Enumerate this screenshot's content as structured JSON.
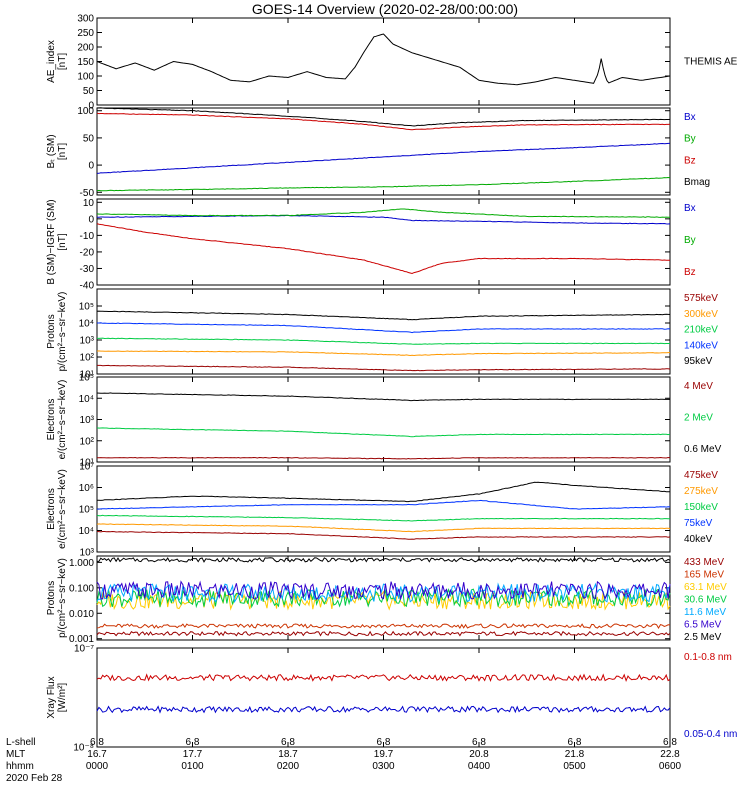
{
  "chart_data": {
    "title": "GOES-14 Overview (2020-02-28/00:00:00)",
    "type": "line",
    "x": {
      "ticks": [
        "0000",
        "0100",
        "0200",
        "0300",
        "0400",
        "0500",
        "0600"
      ],
      "range_hours": [
        0,
        6
      ],
      "rows": [
        {
          "name": "L-shell",
          "values": [
            "6.8",
            "6.8",
            "6.8",
            "6.8",
            "6.8",
            "6.8",
            "6.8"
          ]
        },
        {
          "name": "MLT",
          "values": [
            "16.7",
            "17.7",
            "18.7",
            "19.7",
            "20.8",
            "21.8",
            "22.8"
          ]
        },
        {
          "name": "hhmm",
          "values": [
            "0000",
            "0100",
            "0200",
            "0300",
            "0400",
            "0500",
            "0600"
          ]
        }
      ],
      "date": "2020 Feb 28"
    },
    "panels": [
      {
        "id": "ae",
        "ylabel": [
          "AE_index",
          "[nT]"
        ],
        "scale": "linear",
        "ylim": [
          0,
          300
        ],
        "yticks": [
          "0",
          "50",
          "100",
          "150",
          "200",
          "250",
          "300"
        ],
        "series": [
          {
            "name": "THEMIS AE",
            "color": "#000000",
            "x": [
              0,
              0.2,
              0.4,
              0.6,
              0.8,
              1.0,
              1.2,
              1.4,
              1.6,
              1.8,
              2.0,
              2.2,
              2.4,
              2.6,
              2.7,
              2.8,
              2.9,
              3.0,
              3.1,
              3.2,
              3.3,
              3.4,
              3.6,
              3.8,
              4.0,
              4.2,
              4.4,
              4.6,
              4.8,
              5.0,
              5.2,
              5.25,
              5.28,
              5.31,
              5.35,
              5.5,
              5.7,
              5.9,
              6.0
            ],
            "y": [
              150,
              125,
              145,
              120,
              150,
              140,
              115,
              85,
              80,
              100,
              95,
              115,
              95,
              90,
              130,
              185,
              235,
              245,
              210,
              195,
              180,
              170,
              150,
              130,
              85,
              75,
              70,
              80,
              95,
              85,
              75,
              110,
              160,
              110,
              75,
              95,
              85,
              95,
              100
            ]
          }
        ]
      },
      {
        "id": "bsm",
        "ylabel": [
          "Bₜ (SM)",
          "[nT]"
        ],
        "scale": "linear",
        "ylim": [
          -55,
          105
        ],
        "yticks": [
          "-50",
          "0",
          "50",
          "100"
        ],
        "series": [
          {
            "name": "Bx",
            "color": "#0000cc",
            "x": [
              0,
              1,
              2,
              3,
              4,
              5,
              6
            ],
            "y": [
              -15,
              -5,
              5,
              15,
              25,
              32,
              40
            ]
          },
          {
            "name": "By",
            "color": "#00aa00",
            "x": [
              0,
              1,
              2,
              3,
              4,
              5,
              6
            ],
            "y": [
              -47,
              -45,
              -42,
              -40,
              -36,
              -30,
              -23
            ]
          },
          {
            "name": "Bz",
            "color": "#cc0000",
            "x": [
              0,
              1,
              2,
              2.8,
              3.3,
              3.8,
              4.5,
              6
            ],
            "y": [
              95,
              92,
              85,
              75,
              65,
              70,
              74,
              75
            ]
          },
          {
            "name": "Bmag",
            "color": "#000000",
            "x": [
              0,
              1,
              2,
              2.8,
              3.3,
              3.8,
              4.5,
              6
            ],
            "y": [
              105,
              100,
              90,
              80,
              72,
              78,
              82,
              84
            ]
          }
        ]
      },
      {
        "id": "bigrf",
        "ylabel": [
          "B (SM)−IGRF (SM)",
          "[nT]"
        ],
        "scale": "linear",
        "ylim": [
          -40,
          12
        ],
        "yticks": [
          "-40",
          "-30",
          "-20",
          "-10",
          "0",
          "10"
        ],
        "series": [
          {
            "name": "Bx",
            "color": "#0000cc",
            "x": [
              0,
              1,
              2,
              3,
              3.3,
              4,
              5,
              6
            ],
            "y": [
              1,
              1.5,
              2,
              1,
              -1,
              -1.5,
              -2.5,
              -3
            ]
          },
          {
            "name": "By",
            "color": "#00aa00",
            "x": [
              0,
              1,
              2,
              2.8,
              3.2,
              3.6,
              4.5,
              6
            ],
            "y": [
              3,
              2,
              2,
              4,
              6,
              4,
              1.5,
              1
            ]
          },
          {
            "name": "Bz",
            "color": "#cc0000",
            "x": [
              0,
              0.5,
              1,
              2,
              2.8,
              3.3,
              3.6,
              4,
              5,
              6
            ],
            "y": [
              -3,
              -8,
              -12,
              -18,
              -25,
              -33,
              -27,
              -24,
              -24,
              -25
            ]
          }
        ],
        "legend": [
          "Bx",
          "By",
          "Bz"
        ]
      },
      {
        "id": "protons",
        "ylabel": [
          "Protons",
          "p/(cm²−s−sr−keV)"
        ],
        "scale": "log",
        "ylim": [
          1,
          6
        ],
        "yticks": [
          "10¹",
          "10²",
          "10³",
          "10⁴",
          "10⁵"
        ],
        "series": [
          {
            "name": "575keV",
            "color": "#990000",
            "x": [
              0,
              2,
              3.3,
              4,
              6
            ],
            "y": [
              1.5,
              1.4,
              1.2,
              1.25,
              1.3
            ]
          },
          {
            "name": "300keV",
            "color": "#ff9900",
            "x": [
              0,
              2,
              3.3,
              4,
              6
            ],
            "y": [
              2.35,
              2.3,
              2.1,
              2.2,
              2.25
            ]
          },
          {
            "name": "210keV",
            "color": "#00cc44",
            "x": [
              0,
              2,
              3.3,
              4,
              6
            ],
            "y": [
              3.1,
              3.0,
              2.75,
              2.8,
              2.8
            ]
          },
          {
            "name": "140keV",
            "color": "#0033ff",
            "x": [
              0,
              2,
              3.3,
              4,
              6
            ],
            "y": [
              4.0,
              3.85,
              3.45,
              3.65,
              3.65
            ]
          },
          {
            "name": "95keV",
            "color": "#000000",
            "x": [
              0,
              2,
              3.3,
              4,
              6
            ],
            "y": [
              4.7,
              4.5,
              4.2,
              4.4,
              4.5
            ]
          }
        ],
        "legend": [
          "575keV",
          "300keV",
          "210keV",
          "140keV",
          "95keV"
        ]
      },
      {
        "id": "electrons1",
        "ylabel": [
          "Electrons",
          "e/(cm²−s−sr−keV)"
        ],
        "scale": "log",
        "ylim": [
          1,
          5
        ],
        "yticks": [
          "10¹",
          "10²",
          "10³",
          "10⁴",
          "10⁵"
        ],
        "series": [
          {
            "name": "4 MeV",
            "color": "#990000",
            "x": [
              0,
              2,
              3.3,
              4,
              6
            ],
            "y": [
              1.2,
              1.2,
              1.15,
              1.2,
              1.2
            ]
          },
          {
            "name": "2 MeV",
            "color": "#00cc44",
            "x": [
              0,
              2,
              3.3,
              4,
              6
            ],
            "y": [
              2.6,
              2.45,
              2.2,
              2.3,
              2.3
            ]
          },
          {
            "name": "0.6 MeV",
            "color": "#000000",
            "x": [
              0,
              2,
              3.3,
              4,
              6
            ],
            "y": [
              4.25,
              4.1,
              3.9,
              3.95,
              3.95
            ]
          }
        ],
        "legend": [
          "4 MeV",
          "2 MeV",
          "0.6 MeV"
        ]
      },
      {
        "id": "electrons2",
        "ylabel": [
          "Electrons",
          "e/(cm²−s−sr−keV)"
        ],
        "scale": "log",
        "ylim": [
          3,
          7
        ],
        "yticks": [
          "10³",
          "10⁴",
          "10⁵",
          "10⁶",
          "10⁷"
        ],
        "series": [
          {
            "name": "475keV",
            "color": "#990000",
            "x": [
              0,
              2,
              3.3,
              4,
              6
            ],
            "y": [
              3.95,
              3.85,
              3.6,
              3.7,
              3.7
            ]
          },
          {
            "name": "275keV",
            "color": "#ff9900",
            "x": [
              0,
              2,
              3.3,
              4,
              6
            ],
            "y": [
              4.3,
              4.2,
              3.95,
              4.1,
              4.1
            ]
          },
          {
            "name": "150keV",
            "color": "#00cc44",
            "x": [
              0,
              2,
              3.3,
              4,
              6
            ],
            "y": [
              4.7,
              4.6,
              4.45,
              4.55,
              4.55
            ]
          },
          {
            "name": "75keV",
            "color": "#0033ff",
            "x": [
              0,
              1,
              2,
              3.3,
              4,
              4.5,
              5,
              6
            ],
            "y": [
              5.0,
              5.1,
              5.2,
              5.2,
              5.4,
              5.2,
              5.0,
              5.1
            ]
          },
          {
            "name": "40keV",
            "color": "#000000",
            "x": [
              0,
              1,
              2,
              3.3,
              4,
              4.6,
              5,
              6
            ],
            "y": [
              5.4,
              5.6,
              5.5,
              5.35,
              5.7,
              6.25,
              6.1,
              5.8
            ]
          }
        ],
        "legend": [
          "475keV",
          "275keV",
          "150keV",
          "75keV",
          "40keV"
        ]
      },
      {
        "id": "protons-hi",
        "ylabel": [
          "Protons",
          "p/(cm²−s−sr−keV)"
        ],
        "scale": "log",
        "ylim": [
          -3.05,
          0.25
        ],
        "yticks": [
          "0.001",
          "0.010",
          "0.100",
          "1.000"
        ],
        "series": [
          {
            "name": "433 MeV",
            "color": "#990000",
            "x": [
              0,
              6
            ],
            "y": [
              -2.8,
              -2.8
            ]
          },
          {
            "name": "165 MeV",
            "color": "#cc3300",
            "x": [
              0,
              6
            ],
            "y": [
              -2.5,
              -2.5
            ]
          },
          {
            "name": "63.1 MeV",
            "color": "#ffcc00",
            "x": [
              0,
              6
            ],
            "y": [
              -1.5,
              -1.5
            ]
          },
          {
            "name": "30.6 MeV",
            "color": "#00cc44",
            "x": [
              0,
              6
            ],
            "y": [
              -1.4,
              -1.4
            ]
          },
          {
            "name": "11.6 MeV",
            "color": "#00aaff",
            "x": [
              0,
              6
            ],
            "y": [
              -1.2,
              -1.2
            ]
          },
          {
            "name": "6.5 MeV",
            "color": "#3300cc",
            "x": [
              0,
              6
            ],
            "y": [
              -1.1,
              -1.1
            ]
          },
          {
            "name": "2.5 MeV",
            "color": "#000000",
            "x": [
              0,
              6
            ],
            "y": [
              0.1,
              0.1
            ]
          }
        ],
        "legend": [
          "433 MeV",
          "165 MeV",
          "63.1 MeV",
          "30.6 MeV",
          "11.6 MeV",
          "6.5 MeV",
          "2.5 MeV"
        ]
      },
      {
        "id": "xray",
        "ylabel": [
          "Xray Flux",
          "[W/m²]"
        ],
        "scale": "log",
        "ylim": [
          -8,
          -7
        ],
        "yticks": [
          "10⁻⁸",
          "10⁻⁷"
        ],
        "series": [
          {
            "name": "0.1-0.8 nm",
            "color": "#cc0000",
            "x": [
              0,
              6
            ],
            "y": [
              -7.3,
              -7.3
            ]
          },
          {
            "name": "0.05-0.4 nm",
            "color": "#0000cc",
            "x": [
              0,
              6
            ],
            "y": [
              -7.62,
              -7.62
            ]
          }
        ],
        "legend": [
          "0.1-0.8 nm",
          "0.05-0.4 nm"
        ]
      }
    ]
  }
}
